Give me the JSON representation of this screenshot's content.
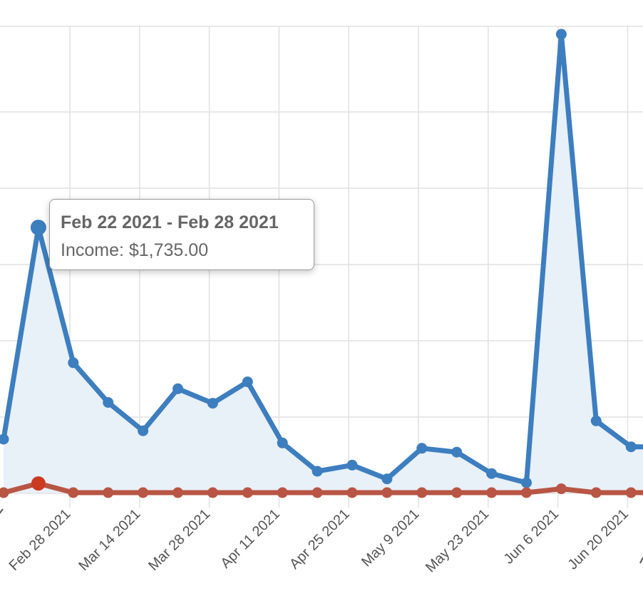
{
  "chart_data": {
    "type": "area",
    "x_tick_labels": [
      "Feb 28 2021",
      "Mar 14 2021",
      "Mar 28 2021",
      "Apr 11 2021",
      "Apr 25 2021",
      "May 9 2021",
      "May 23 2021",
      "Jun 6 2021",
      "Jun 20 2021"
    ],
    "grid": true,
    "legend": "none",
    "ylim": [
      0,
      3000
    ],
    "series": [
      {
        "color": "#3d7ebf",
        "fill": "#e8f0f8",
        "values": [
          350,
          1735,
          850,
          590,
          405,
          680,
          585,
          725,
          325,
          140,
          180,
          90,
          290,
          265,
          125,
          65,
          3000,
          470,
          300,
          300
        ]
      },
      {
        "color": "#b85544",
        "fill": "none",
        "values": [
          0,
          60,
          0,
          0,
          0,
          0,
          0,
          0,
          0,
          0,
          0,
          0,
          0,
          0,
          0,
          0,
          25,
          0,
          0,
          0
        ]
      }
    ],
    "tooltip": {
      "title": "Feb 22 2021 - Feb 28 2021",
      "body": "Income: $1,735.00",
      "point_index": 1
    }
  }
}
